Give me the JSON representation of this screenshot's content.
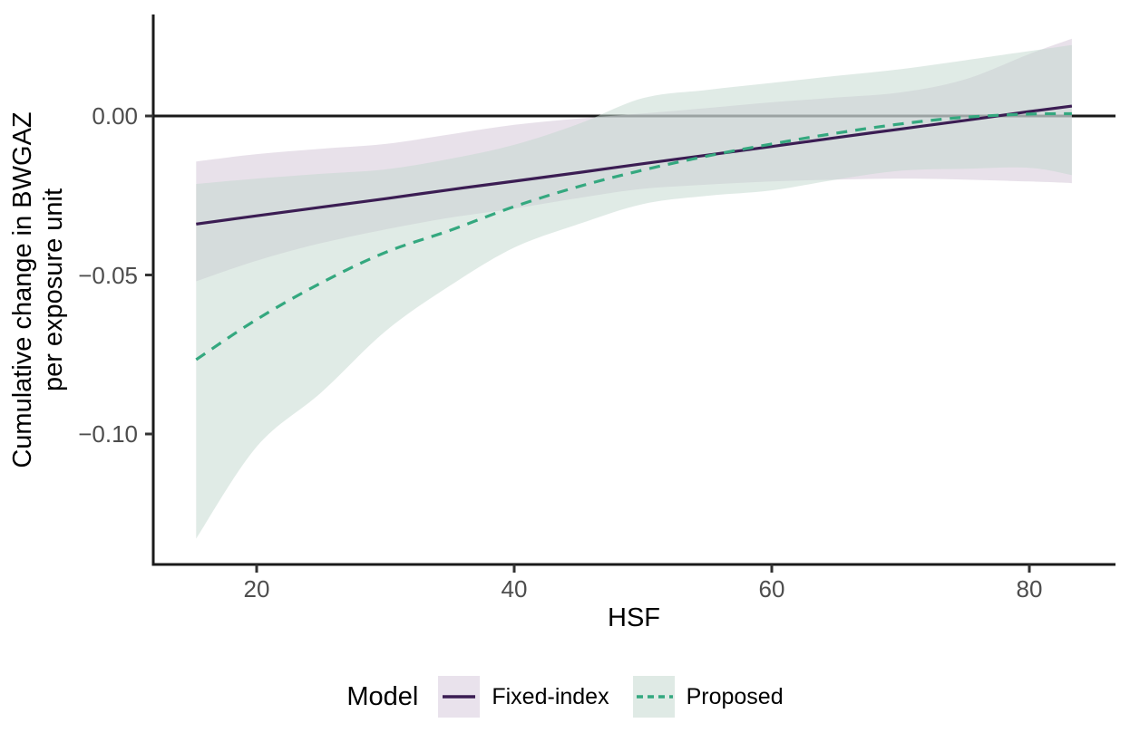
{
  "chart_data": {
    "type": "line",
    "title": "",
    "xlabel": "HSF",
    "ylabel_lines": [
      "Cumulative change in BWGAZ",
      "per exposure unit"
    ],
    "xlim": [
      12,
      86.7
    ],
    "ylim": [
      -0.141,
      0.032
    ],
    "grid": "off",
    "zero_reference_line": 0,
    "xticks": [
      20,
      40,
      60,
      80
    ],
    "xtick_labels": [
      "20",
      "40",
      "60",
      "80"
    ],
    "yticks": [
      0.0,
      -0.05,
      -0.1
    ],
    "ytick_labels": [
      "0.00",
      "−0.05",
      "−0.10"
    ],
    "axis_color": "#1a1a1a",
    "tick_label_color": "#4d4d4d",
    "x": [
      15.3,
      20,
      25,
      30,
      35,
      40,
      45,
      50,
      55,
      60,
      65,
      70,
      75,
      80,
      83.3
    ],
    "series": [
      {
        "name": "Fixed-index",
        "line_style": "solid",
        "color": "#3B1D53",
        "ci_color": "rgb(209,195,213)",
        "ci_opacity": 0.5,
        "key_bg": "#E9E2EC",
        "est": [
          -0.034,
          -0.0314,
          -0.0287,
          -0.026,
          -0.0232,
          -0.0205,
          -0.0178,
          -0.015,
          -0.0123,
          -0.0096,
          -0.0068,
          -0.0041,
          -0.0014,
          0.0014,
          0.0031
        ],
        "ci_upper": [
          -0.0143,
          -0.012,
          -0.0103,
          -0.0088,
          -0.0058,
          -0.0028,
          -0.0008,
          0.0008,
          0.0025,
          0.0043,
          0.0058,
          0.0074,
          0.0115,
          0.0195,
          0.0243
        ],
        "ci_lower": [
          -0.052,
          -0.0455,
          -0.04,
          -0.0357,
          -0.032,
          -0.0291,
          -0.0258,
          -0.0229,
          -0.0216,
          -0.0206,
          -0.02,
          -0.0197,
          -0.02,
          -0.0206,
          -0.0211
        ]
      },
      {
        "name": "Proposed",
        "line_style": "dashed",
        "color": "#34A87F",
        "ci_color": "rgb(193,215,205)",
        "ci_opacity": 0.5,
        "key_bg": "#DFEAE5",
        "est": [
          -0.0766,
          -0.064,
          -0.0525,
          -0.0429,
          -0.036,
          -0.0285,
          -0.0222,
          -0.017,
          -0.0126,
          -0.0088,
          -0.0054,
          -0.0025,
          -0.0004,
          0.0006,
          0.0007
        ],
        "ci_upper": [
          -0.0214,
          -0.0197,
          -0.0182,
          -0.0168,
          -0.0135,
          -0.0091,
          -0.0025,
          0.0056,
          0.0082,
          0.0104,
          0.0126,
          0.0147,
          0.0175,
          0.0204,
          0.0223
        ],
        "ci_lower": [
          -0.1329,
          -0.104,
          -0.087,
          -0.0677,
          -0.0534,
          -0.0414,
          -0.034,
          -0.0277,
          -0.0251,
          -0.0234,
          -0.02,
          -0.0172,
          -0.0166,
          -0.0163,
          -0.0186
        ]
      }
    ],
    "legend": {
      "title": "Model",
      "position": "bottom",
      "entries": [
        "Fixed-index",
        "Proposed"
      ]
    }
  }
}
